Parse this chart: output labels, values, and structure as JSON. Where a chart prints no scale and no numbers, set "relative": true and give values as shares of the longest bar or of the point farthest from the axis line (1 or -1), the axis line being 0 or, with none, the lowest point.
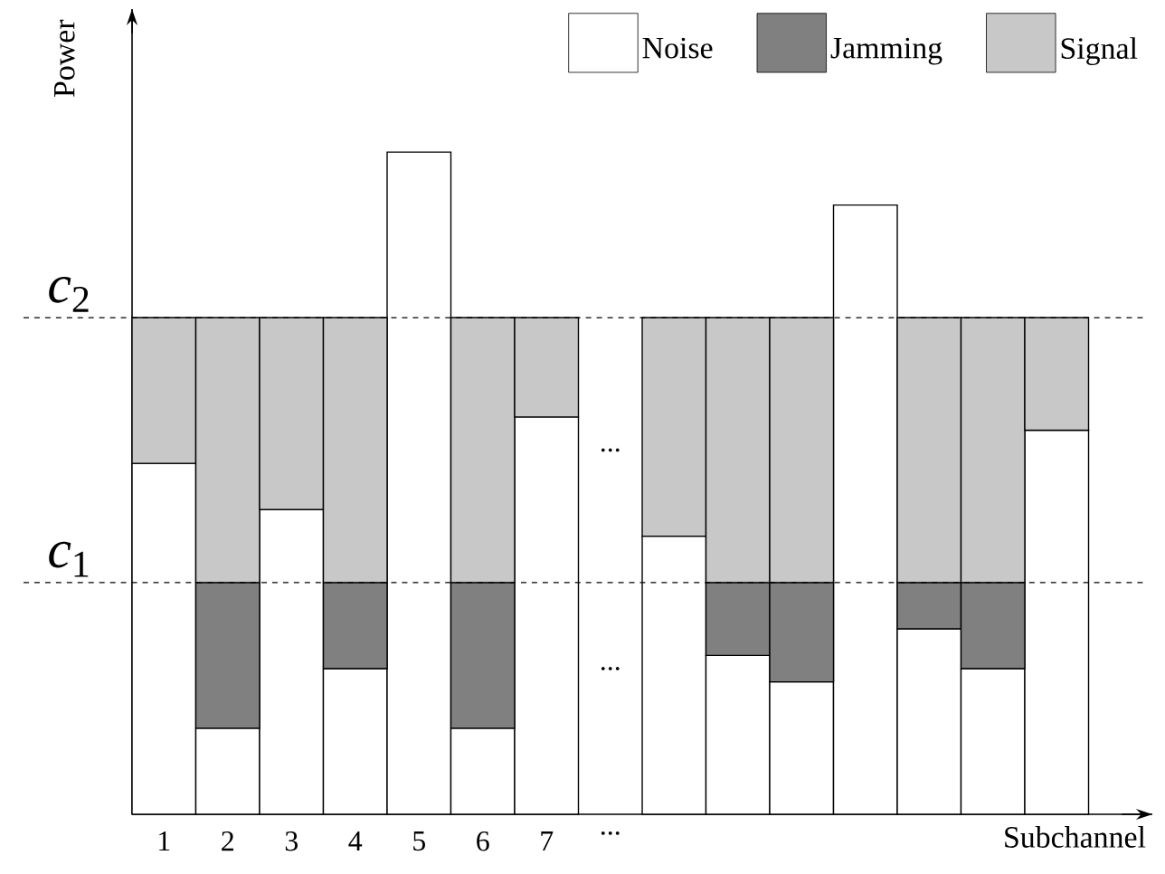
{
  "chart_data": {
    "type": "bar",
    "stacked": true,
    "relative": true,
    "xlabel": "Subchannel",
    "ylabel": "Power",
    "legend": "top right",
    "categories": [
      "1",
      "2",
      "3",
      "4",
      "5",
      "6",
      "7",
      "...",
      null,
      null,
      null,
      null,
      null,
      null,
      null
    ],
    "series": [
      {
        "name": "Noise",
        "color": "#ffffff",
        "values": [
          0.53,
          0.13,
          0.46,
          0.22,
          1.0,
          0.13,
          0.6,
          null,
          0.42,
          0.24,
          0.2,
          0.92,
          0.28,
          0.22,
          0.58
        ]
      },
      {
        "name": "Jamming",
        "color": "#808080",
        "values": [
          0,
          0.22,
          0,
          0.13,
          0,
          0.22,
          0,
          null,
          0,
          0.11,
          0.15,
          0,
          0.07,
          0.13,
          0
        ]
      },
      {
        "name": "Signal",
        "color": "#c8c8c8",
        "values": [
          0.22,
          0.4,
          0.29,
          0.4,
          0,
          0.4,
          0.15,
          null,
          0.33,
          0.4,
          0.4,
          0,
          0.4,
          0.4,
          0.17
        ]
      }
    ],
    "ref_lines": [
      {
        "axis": "y",
        "value": 0.35,
        "label": "*c*$_{1}$",
        "line_style": "dashed"
      },
      {
        "axis": "y",
        "value": 0.75,
        "label": "*c*$_{2}$",
        "line_style": "dashed"
      }
    ],
    "annotations": [
      "...",
      "..."
    ]
  }
}
